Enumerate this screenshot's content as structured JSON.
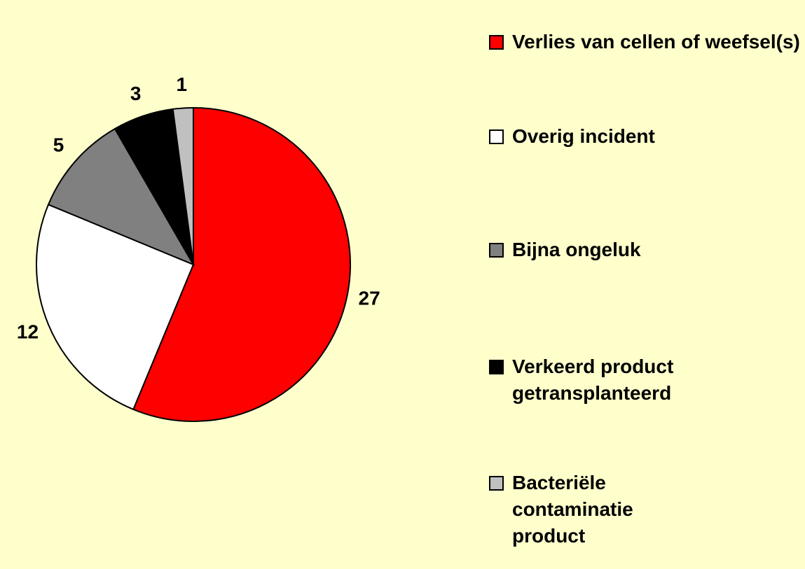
{
  "chart_data": {
    "type": "pie",
    "categories": [
      "Verlies van cellen of weefsel(s)",
      "Overig incident",
      "Bijna ongeluk",
      "Verkeerd product getransplanteerd",
      "Bacteriële contaminatie product"
    ],
    "values": [
      27,
      12,
      5,
      3,
      1
    ],
    "colors": [
      "#ff0000",
      "#ffffff",
      "#808080",
      "#000000",
      "#c0c0c0"
    ],
    "legend": "right"
  }
}
